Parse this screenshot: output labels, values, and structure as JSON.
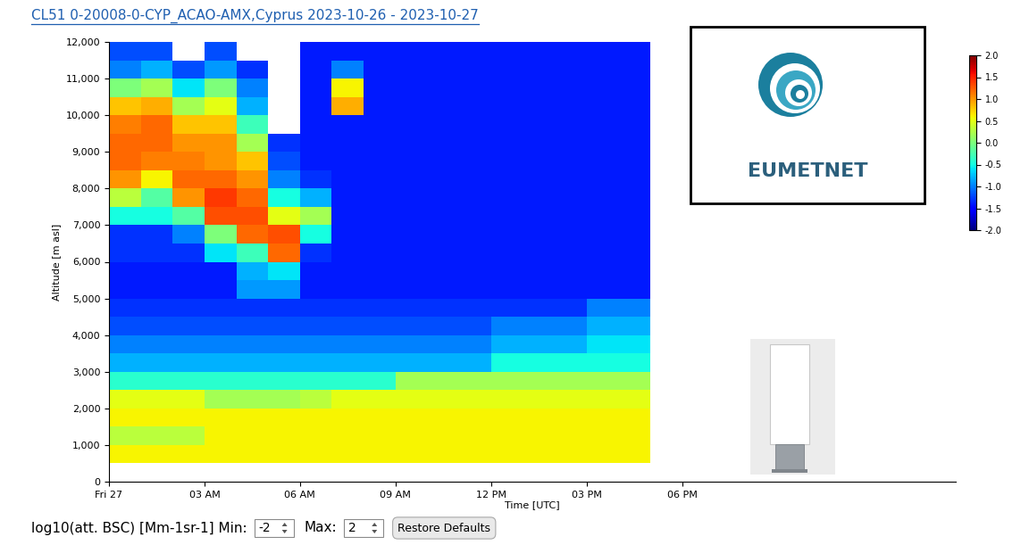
{
  "chart_data": {
    "type": "heatmap",
    "title": "CL51 0-20008-0-CYP_ACAO-AMX,Cyprus 2023-10-26 - 2023-10-27",
    "x_label": "Time [UTC]",
    "y_label": "Altitude [m asl]",
    "xlim": [
      0,
      26.6
    ],
    "xticks": [
      {
        "value": 0,
        "label": "Fri 27"
      },
      {
        "value": 3,
        "label": "03 AM"
      },
      {
        "value": 6,
        "label": "06 AM"
      },
      {
        "value": 9,
        "label": "09 AM"
      },
      {
        "value": 12,
        "label": "12 PM"
      },
      {
        "value": 15,
        "label": "03 PM"
      },
      {
        "value": 18,
        "label": "06 PM"
      }
    ],
    "ylim": [
      0,
      12000
    ],
    "yticks": [
      0,
      {
        "value": 1000,
        "label": "1,000"
      },
      {
        "value": 2000,
        "label": "2,000"
      },
      {
        "value": 3000,
        "label": "3,000"
      },
      {
        "value": 4000,
        "label": "4,000"
      },
      {
        "value": 5000,
        "label": "5,000"
      },
      {
        "value": 6000,
        "label": "6,000"
      },
      {
        "value": 7000,
        "label": "7,000"
      },
      {
        "value": 8000,
        "label": "8,000"
      },
      {
        "value": 9000,
        "label": "9,000"
      },
      {
        "value": 10000,
        "label": "10,000"
      },
      {
        "value": 11000,
        "label": "11,000"
      },
      {
        "value": 12000,
        "label": "12,000"
      }
    ],
    "grid": false,
    "time_edges": [
      0,
      1,
      2,
      3,
      4,
      5,
      6,
      7,
      8,
      9,
      10,
      11,
      12,
      13,
      14,
      15,
      16,
      17
    ],
    "altitude_edges": [
      500,
      1000,
      1500,
      2000,
      2500,
      3000,
      3500,
      4000,
      4500,
      5000,
      5500,
      6000,
      6500,
      7000,
      7500,
      8000,
      8500,
      9000,
      9500,
      10000,
      10500,
      11000,
      11500,
      12000
    ],
    "cells": [
      [
        0.6,
        0.6,
        0.6,
        0.6,
        0.6,
        0.6,
        0.6,
        0.6,
        0.6,
        0.6,
        0.6,
        0.6,
        0.6,
        0.6,
        0.6,
        0.6,
        0.6
      ],
      [
        0.3,
        0.3,
        0.3,
        0.6,
        0.6,
        0.6,
        0.6,
        0.6,
        0.6,
        0.6,
        0.6,
        0.6,
        0.6,
        0.6,
        0.6,
        0.6,
        0.6
      ],
      [
        0.6,
        0.6,
        0.6,
        0.6,
        0.6,
        0.6,
        0.6,
        0.6,
        0.6,
        0.6,
        0.6,
        0.6,
        0.6,
        0.6,
        0.6,
        0.6,
        0.6
      ],
      [
        0.5,
        0.5,
        0.5,
        0.2,
        0.2,
        0.2,
        0.3,
        0.5,
        0.5,
        0.5,
        0.5,
        0.5,
        0.5,
        0.5,
        0.5,
        0.5,
        0.5
      ],
      [
        -0.4,
        -0.4,
        -0.4,
        -0.4,
        -0.4,
        -0.4,
        -0.4,
        -0.4,
        -0.4,
        0.2,
        0.2,
        0.2,
        0.2,
        0.2,
        0.2,
        0.2,
        0.2
      ],
      [
        -0.8,
        -0.8,
        -0.8,
        -0.8,
        -0.8,
        -0.8,
        -0.8,
        -0.8,
        -0.8,
        -0.8,
        -0.8,
        -0.8,
        -0.5,
        -0.5,
        -0.5,
        -0.5,
        -0.5
      ],
      [
        -1.0,
        -1.0,
        -1.0,
        -1.0,
        -1.0,
        -1.0,
        -1.0,
        -1.0,
        -1.0,
        -1.0,
        -1.0,
        -1.0,
        -0.8,
        -0.8,
        -0.8,
        -0.6,
        -0.6
      ],
      [
        -1.2,
        -1.2,
        -1.2,
        -1.2,
        -1.2,
        -1.2,
        -1.2,
        -1.2,
        -1.2,
        -1.2,
        -1.2,
        -1.2,
        -1.0,
        -1.0,
        -1.0,
        -0.8,
        -0.8
      ],
      [
        -1.3,
        -1.3,
        -1.3,
        -1.3,
        -1.3,
        -1.3,
        -1.3,
        -1.3,
        -1.3,
        -1.3,
        -1.3,
        -1.3,
        -1.3,
        -1.3,
        -1.3,
        -1.0,
        -1.0
      ],
      [
        -1.4,
        -1.4,
        -1.4,
        -1.4,
        -0.9,
        -0.9,
        -1.4,
        -1.4,
        -1.4,
        -1.4,
        -1.4,
        -1.4,
        -1.4,
        -1.4,
        -1.4,
        -1.4,
        -1.4
      ],
      [
        -1.4,
        -1.4,
        -1.4,
        -1.4,
        -0.8,
        -0.6,
        -1.4,
        -1.4,
        -1.4,
        -1.4,
        -1.4,
        -1.4,
        -1.4,
        -1.4,
        -1.4,
        -1.4,
        -1.4
      ],
      [
        -1.3,
        -1.3,
        -1.3,
        -0.6,
        -0.3,
        1.2,
        -1.3,
        -1.4,
        -1.4,
        -1.4,
        -1.4,
        -1.4,
        -1.4,
        -1.4,
        -1.4,
        -1.4,
        -1.4
      ],
      [
        -1.3,
        -1.3,
        -1.0,
        0.0,
        1.2,
        1.3,
        -0.5,
        -1.4,
        -1.4,
        -1.4,
        -1.4,
        -1.4,
        -1.4,
        -1.4,
        -1.4,
        -1.4,
        -1.4
      ],
      [
        -0.5,
        -0.5,
        -0.2,
        1.3,
        1.3,
        0.5,
        0.2,
        -1.4,
        -1.4,
        -1.4,
        -1.4,
        -1.4,
        -1.4,
        -1.4,
        -1.4,
        -1.4,
        -1.4
      ],
      [
        0.3,
        -0.2,
        1.0,
        1.4,
        1.2,
        -0.5,
        -0.8,
        -1.4,
        -1.4,
        -1.4,
        -1.4,
        -1.4,
        -1.4,
        -1.4,
        -1.4,
        -1.4,
        -1.4
      ],
      [
        1.0,
        0.6,
        1.2,
        1.2,
        1.0,
        -1.0,
        -1.3,
        -1.4,
        -1.4,
        -1.4,
        -1.4,
        -1.4,
        -1.4,
        -1.4,
        -1.4,
        -1.4,
        -1.4
      ],
      [
        1.2,
        1.1,
        1.1,
        1.0,
        0.8,
        -1.2,
        -1.4,
        -1.4,
        -1.4,
        -1.4,
        -1.4,
        -1.4,
        -1.4,
        -1.4,
        -1.4,
        -1.4,
        -1.4
      ],
      [
        1.2,
        1.2,
        1.0,
        1.0,
        0.2,
        -1.3,
        -1.4,
        -1.4,
        -1.4,
        -1.4,
        -1.4,
        -1.4,
        -1.4,
        -1.4,
        -1.4,
        -1.4,
        -1.4
      ],
      [
        1.1,
        1.2,
        0.8,
        0.8,
        -0.3,
        null,
        -1.4,
        -1.4,
        -1.4,
        -1.4,
        -1.4,
        -1.4,
        -1.4,
        -1.4,
        -1.4,
        -1.4,
        -1.4
      ],
      [
        0.8,
        0.9,
        0.2,
        0.5,
        -0.8,
        null,
        -1.4,
        0.9,
        -1.4,
        -1.4,
        -1.4,
        -1.4,
        -1.4,
        -1.4,
        -1.4,
        -1.4,
        -1.4
      ],
      [
        0.0,
        0.2,
        -0.6,
        0.0,
        -1.0,
        null,
        -1.4,
        0.6,
        -1.4,
        -1.4,
        -1.4,
        -1.4,
        -1.4,
        -1.4,
        -1.4,
        -1.4,
        -1.4
      ],
      [
        -1.0,
        -0.8,
        -1.2,
        -0.9,
        -1.3,
        null,
        -1.4,
        -1.0,
        -1.4,
        -1.4,
        -1.4,
        -1.4,
        -1.4,
        -1.4,
        -1.4,
        -1.4,
        -1.4
      ],
      [
        -1.2,
        -1.2,
        null,
        -1.2,
        null,
        null,
        -1.4,
        -1.4,
        -1.4,
        -1.4,
        -1.4,
        -1.4,
        -1.4,
        -1.4,
        -1.4,
        -1.4,
        -1.4
      ]
    ],
    "colorbar_range": [
      -2,
      2
    ],
    "colorbar_ticks": [
      -2.0,
      -1.5,
      -1.0,
      -0.5,
      0.0,
      0.5,
      1.0,
      1.5,
      2.0
    ]
  },
  "logo": "EUMETNET",
  "controls": {
    "label": "log10(att. BSC) [Mm-1sr-1] Min:",
    "min": -2,
    "max_label": "Max:",
    "max": 2,
    "button": "Restore Defaults"
  }
}
